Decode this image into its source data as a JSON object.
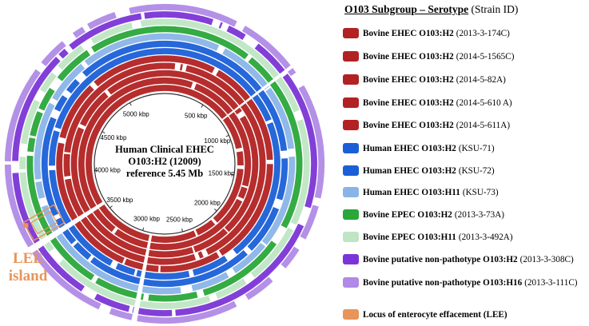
{
  "figure": {
    "center_lines": [
      "Human Clinical EHEC",
      "O103:H2 (12009)",
      "reference 5.45 Mb"
    ],
    "genome_size_kbp": 5450,
    "ticks": [
      {
        "label": "500 kbp",
        "kbp": 500
      },
      {
        "label": "1000 kbp",
        "kbp": 1000
      },
      {
        "label": "1500 kbp",
        "kbp": 1500
      },
      {
        "label": "2000 kbp",
        "kbp": 2000
      },
      {
        "label": "2500 kbp",
        "kbp": 2500
      },
      {
        "label": "3000 kbp",
        "kbp": 3000
      },
      {
        "label": "3500 kbp",
        "kbp": 3500
      },
      {
        "label": "4000 kbp",
        "kbp": 4000
      },
      {
        "label": "4500 kbp",
        "kbp": 4500
      },
      {
        "label": "5000 kbp",
        "kbp": 5000
      }
    ],
    "lee_label": [
      "LEE",
      "island"
    ],
    "colors": {
      "lee": "#e8945a",
      "background": "#ffffff"
    }
  },
  "legend": {
    "title": "O103 Subgroup – Serotype",
    "title_suffix": "(Strain ID)",
    "items": [
      {
        "label": "Bovine EHEC O103:H2",
        "strain": "(2013-3-174C)",
        "color": "#b22222"
      },
      {
        "label": "Bovine EHEC O103:H2",
        "strain": "(2014-5-1565C)",
        "color": "#b22222"
      },
      {
        "label": "Bovine EHEC O103:H2",
        "strain": "(2014-5-82A)",
        "color": "#b22222"
      },
      {
        "label": "Bovine EHEC O103:H2",
        "strain": "(2014-5-610 A)",
        "color": "#b22222"
      },
      {
        "label": "Bovine EHEC O103:H2",
        "strain": "(2014-5-611A)",
        "color": "#b22222"
      },
      {
        "label": "Human EHEC O103:H2",
        "strain": "(KSU-71)",
        "color": "#1a5fd8"
      },
      {
        "label": "Human EHEC O103:H2",
        "strain": "(KSU-72)",
        "color": "#1a5fd8"
      },
      {
        "label": "Human EHEC O103:H11",
        "strain": "(KSU-73)",
        "color": "#8ab4e8"
      },
      {
        "label": "Bovine EPEC O103:H2",
        "strain": "(2013-3-73A)",
        "color": "#2aa63a"
      },
      {
        "label": "Bovine EPEC O103:H11",
        "strain": "(2013-3-492A)",
        "color": "#bfe6c4"
      },
      {
        "label": "Bovine putative non-pathotype O103:H2",
        "strain": "(2013-3-308C)",
        "color": "#7b35d6"
      },
      {
        "label": "Bovine putative non-pathotype O103:H16",
        "strain": "(2013-3-111C)",
        "color": "#b08ae6"
      }
    ],
    "lee_item": {
      "label": "Locus of enterocyte effacement (LEE)",
      "color": "#e8945a"
    }
  }
}
